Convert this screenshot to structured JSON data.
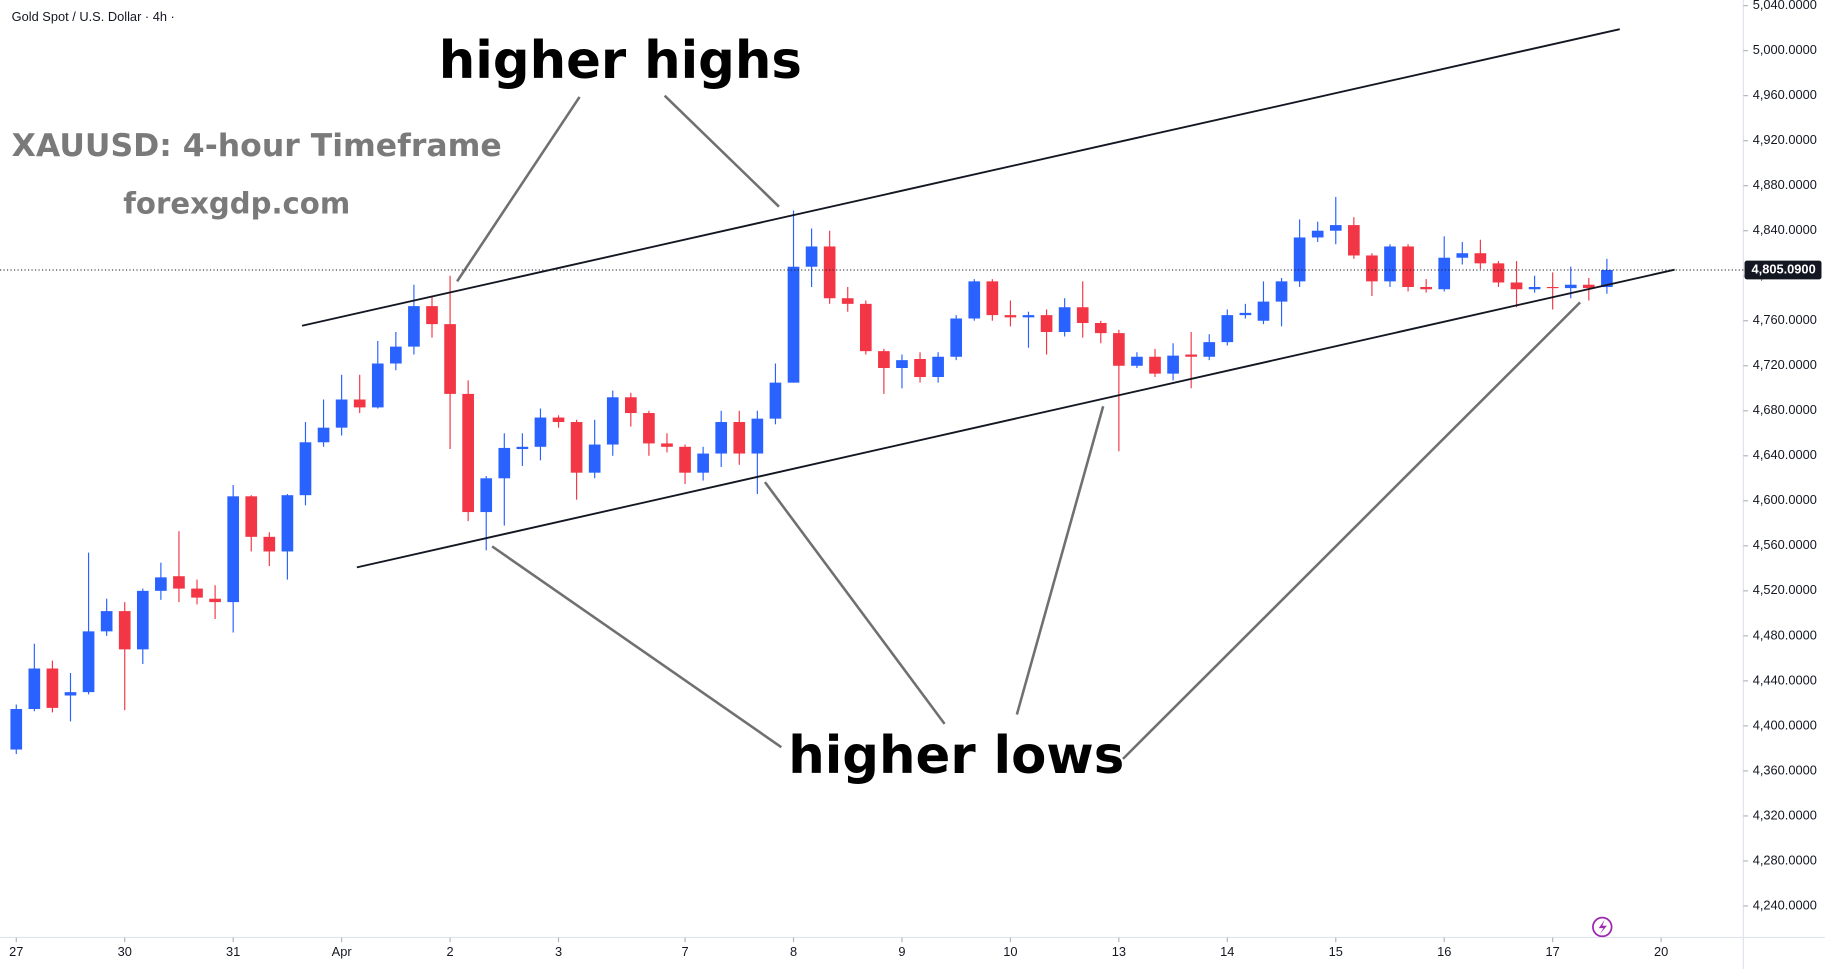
{
  "chart_data": {
    "type": "candlestick",
    "title": "Gold Spot / U.S. Dollar · 4h ·",
    "annotations": [
      "higher highs",
      "higher lows",
      "XAUUSD: 4-hour Timeframe",
      "forexgdp.com"
    ],
    "up_color": "#2962ff",
    "down_color": "#f23645",
    "series": {
      "open": [
        4379,
        4415,
        4451,
        4427,
        4430,
        4484,
        4502,
        4468,
        4520,
        4533,
        4522,
        4513,
        4510,
        4604,
        4568,
        4555,
        4605,
        4652,
        4665,
        4690,
        4683,
        4722,
        4737,
        4773,
        4757,
        4695,
        4590,
        4620,
        4646,
        4648,
        4674,
        4670,
        4625,
        4650,
        4692,
        4678,
        4651,
        4648,
        4625,
        4642,
        4670,
        4642,
        4673,
        4705,
        4808,
        4826,
        4780,
        4775,
        4733,
        4718,
        4726,
        4710,
        4728,
        4762,
        4795,
        4765,
        4763,
        4765,
        4750,
        4772,
        4758,
        4749,
        4720,
        4728,
        4713,
        4730,
        4728,
        4741,
        4765,
        4760,
        4777,
        4795,
        4834,
        4840,
        4845,
        4818,
        4795,
        4826,
        4790,
        4788,
        4816,
        4820,
        4811,
        4794,
        4788,
        4790,
        4789,
        4792,
        4790
      ],
      "high": [
        4419,
        4473,
        4458,
        4447,
        4554,
        4513,
        4510,
        4522,
        4545,
        4573,
        4530,
        4525,
        4614,
        4605,
        4572,
        4606,
        4670,
        4690,
        4712,
        4712,
        4742,
        4750,
        4792,
        4782,
        4800,
        4707,
        4622,
        4660,
        4660,
        4682,
        4676,
        4672,
        4672,
        4698,
        4696,
        4680,
        4660,
        4650,
        4648,
        4680,
        4680,
        4680,
        4722,
        4858,
        4842,
        4840,
        4790,
        4778,
        4735,
        4730,
        4732,
        4732,
        4765,
        4797,
        4797,
        4778,
        4768,
        4770,
        4780,
        4795,
        4760,
        4752,
        4732,
        4735,
        4740,
        4750,
        4748,
        4770,
        4775,
        4795,
        4798,
        4850,
        4848,
        4870,
        4852,
        4820,
        4828,
        4828,
        4797,
        4835,
        4830,
        4832,
        4813,
        4813,
        4800,
        4803,
        4808,
        4798,
        4815
      ],
      "low": [
        4375,
        4413,
        4412,
        4404,
        4428,
        4480,
        4414,
        4455,
        4512,
        4510,
        4508,
        4495,
        4483,
        4555,
        4542,
        4530,
        4596,
        4648,
        4658,
        4678,
        4682,
        4716,
        4730,
        4745,
        4646,
        4582,
        4556,
        4578,
        4631,
        4636,
        4665,
        4601,
        4620,
        4640,
        4666,
        4640,
        4643,
        4615,
        4618,
        4630,
        4632,
        4606,
        4668,
        4705,
        4790,
        4775,
        4768,
        4730,
        4695,
        4700,
        4705,
        4705,
        4725,
        4760,
        4760,
        4755,
        4736,
        4730,
        4746,
        4745,
        4740,
        4644,
        4718,
        4710,
        4707,
        4700,
        4725,
        4738,
        4762,
        4757,
        4755,
        4790,
        4830,
        4828,
        4815,
        4782,
        4790,
        4786,
        4785,
        4786,
        4810,
        4806,
        4790,
        4772,
        4785,
        4770,
        4780,
        4778,
        4784
      ],
      "close": [
        4415,
        4451,
        4416,
        4430,
        4484,
        4502,
        4468,
        4520,
        4532,
        4522,
        4514,
        4510,
        4604,
        4568,
        4555,
        4605,
        4652,
        4665,
        4690,
        4683,
        4722,
        4737,
        4773,
        4757,
        4695,
        4590,
        4620,
        4647,
        4648,
        4674,
        4670,
        4625,
        4650,
        4692,
        4678,
        4651,
        4648,
        4625,
        4642,
        4670,
        4642,
        4673,
        4705,
        4808,
        4826,
        4780,
        4775,
        4733,
        4718,
        4725,
        4710,
        4728,
        4762,
        4795,
        4765,
        4763,
        4765,
        4750,
        4772,
        4758,
        4749,
        4720,
        4728,
        4713,
        4729,
        4728,
        4741,
        4765,
        4767,
        4777,
        4795,
        4834,
        4840,
        4845,
        4818,
        4795,
        4826,
        4790,
        4788,
        4816,
        4820,
        4811,
        4794,
        4788,
        4790,
        4789,
        4792,
        4789,
        4805.09
      ]
    },
    "last_price": {
      "value": 4805.09,
      "label": "4,805.0900"
    },
    "xlim": [
      -0.9,
      95.55
    ],
    "xticks": [
      {
        "value": 0,
        "label": "27"
      },
      {
        "value": 6,
        "label": "30"
      },
      {
        "value": 12,
        "label": "31"
      },
      {
        "value": 18,
        "label": "Apr"
      },
      {
        "value": 24,
        "label": "2"
      },
      {
        "value": 30,
        "label": "3"
      },
      {
        "value": 37,
        "label": "7"
      },
      {
        "value": 43,
        "label": "8"
      },
      {
        "value": 49,
        "label": "9"
      },
      {
        "value": 55,
        "label": "10"
      },
      {
        "value": 61,
        "label": "13"
      },
      {
        "value": 67,
        "label": "14"
      },
      {
        "value": 73,
        "label": "15"
      },
      {
        "value": 79,
        "label": "16"
      },
      {
        "value": 85,
        "label": "17"
      },
      {
        "value": 91,
        "label": "20"
      }
    ],
    "ylim": [
      4212,
      5045
    ],
    "yticks": [
      {
        "value": 4240,
        "label": "4,240.0000"
      },
      {
        "value": 4280,
        "label": "4,280.0000"
      },
      {
        "value": 4320,
        "label": "4,320.0000"
      },
      {
        "value": 4360,
        "label": "4,360.0000"
      },
      {
        "value": 4400,
        "label": "4,400.0000"
      },
      {
        "value": 4440,
        "label": "4,440.0000"
      },
      {
        "value": 4480,
        "label": "4,480.0000"
      },
      {
        "value": 4520,
        "label": "4,520.0000"
      },
      {
        "value": 4560,
        "label": "4,560.0000"
      },
      {
        "value": 4600,
        "label": "4,600.0000"
      },
      {
        "value": 4640,
        "label": "4,640.0000"
      },
      {
        "value": 4680,
        "label": "4,680.0000"
      },
      {
        "value": 4720,
        "label": "4,720.0000"
      },
      {
        "value": 4760,
        "label": "4,760.0000"
      },
      {
        "value": 4800,
        "label": "4,800.0000"
      },
      {
        "value": 4840,
        "label": "4,840.0000"
      },
      {
        "value": 4880,
        "label": "4,880.0000"
      },
      {
        "value": 4920,
        "label": "4,920.0000"
      },
      {
        "value": 4960,
        "label": "4,960.0000"
      },
      {
        "value": 5000,
        "label": "5,000.0000"
      },
      {
        "value": 5040,
        "label": "5,040.0000"
      }
    ],
    "grid": false
  }
}
